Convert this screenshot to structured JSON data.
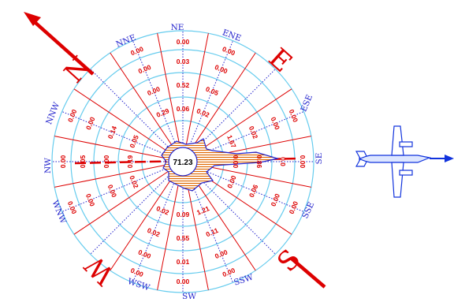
{
  "calm": "71.23",
  "cardinal": {
    "north": "N",
    "east": "E",
    "south": "S",
    "west": "W"
  },
  "directions": [
    "NE",
    "ENE",
    "ESE",
    "SE",
    "SSE",
    "SSW",
    "SW",
    "WSW",
    "WNW",
    "NW",
    "NNW",
    "NNE"
  ],
  "values": {
    "NNE": [
      "0.00",
      "0.00",
      "0.00",
      "0.29"
    ],
    "NE": [
      "0.00",
      "0.03",
      "0.52",
      "0.06"
    ],
    "ENE": [
      "0.00",
      "0.00",
      "0.05",
      "0.02"
    ],
    "ESE": [
      "0.00",
      "0.00",
      "0.02",
      "1.67"
    ],
    "SE": [
      "0.00",
      "0.0",
      "0.86",
      "0.00"
    ],
    "SSE": [
      "0.00",
      "0.00",
      "0.06",
      "0.00"
    ],
    "SSW": [
      "0.00",
      "0.00",
      "0.11",
      "1.21"
    ],
    "SW": [
      "0.00",
      "0.01",
      "0.55",
      "0.09"
    ],
    "WSW": [
      "0.00",
      "0.00",
      "0.02",
      "0.02"
    ],
    "WNW": [
      "0.00",
      "0.00",
      "0.00",
      "0.02"
    ],
    "NW": [
      "0.00",
      "0.05",
      "0.00",
      "0.19"
    ],
    "NNW": [
      "0.00",
      "0.00",
      "0.14",
      "0.05"
    ]
  },
  "colors": {
    "rings": "#66ccee",
    "spokes": "#dd0000",
    "dotted": "#2222cc",
    "petals": "#dd6600",
    "arrows": "#dd0000",
    "aircraft": "#1133dd"
  },
  "icons": [
    "north-arrow-icon",
    "south-arrow-icon",
    "aircraft-icon"
  ]
}
